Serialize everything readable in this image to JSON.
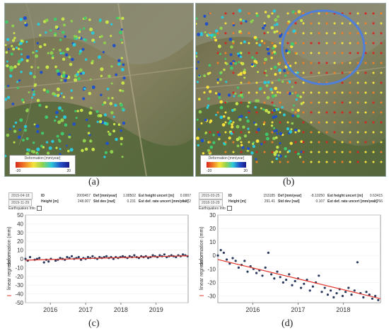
{
  "panels": {
    "a": {
      "caption": "(a)",
      "legend": {
        "title": "Deformation [mm/year]",
        "min": "-20",
        "max": "20"
      },
      "info": {
        "date_from": "2015-04-18",
        "date_to": "2019-11-29",
        "id_label": "ID",
        "id_value": "2009457",
        "height_label": "Height [m]",
        "height_value": "248.007",
        "def_label": "Def [mm/year]",
        "def_value": "1.08502",
        "stddev_label": "Std dev [rad]",
        "stddev_value": "0.231",
        "ehu_label": "Est height uncert [m]",
        "ehu_value": "0.0007",
        "edru_label": "Est def. rate uncert [mm/year]",
        "edru_value": "0.072",
        "eq_label": "Earthquakes Info"
      }
    },
    "b": {
      "caption": "(b)",
      "legend": {
        "title": "Deformation [mm/year]",
        "min": "-20",
        "max": "20"
      },
      "info": {
        "date_from": "2015-03-25",
        "date_to": "2018-10-29",
        "id_label": "ID",
        "id_value": "153185",
        "height_label": "Height [m]",
        "height_value": "291.41",
        "def_label": "Def [mm/year]",
        "def_value": "-8.10250",
        "stddev_label": "Std dev [rad]",
        "stddev_value": "0.107",
        "ehu_label": "Est height uncert [m]",
        "ehu_value": "0.63415",
        "edru_label": "Est def. rate uncert [mm/year]",
        "edru_value": "0.766",
        "eq_label": "Earthquakes Info"
      }
    },
    "c": {
      "caption": "(c)"
    },
    "d": {
      "caption": "(d)"
    }
  },
  "colors": {
    "scatter": "#2a3a5c",
    "regression": "#e0332a",
    "ellipse": "#4f7fd8",
    "terrain": "#7c7a5a",
    "vegetation": "#4f6a3a"
  },
  "chart_data": [
    {
      "type": "scatter",
      "panel": "c",
      "ylabel": "deformation (mm)",
      "legend": "linear regression",
      "ylim": [
        -50,
        50
      ],
      "yticks": [
        50,
        40,
        30,
        20,
        10,
        0,
        -10,
        -20,
        -30,
        -40,
        -50
      ],
      "xlim": [
        "2015-04-18",
        "2019-11-29"
      ],
      "xticks": [
        "2016",
        "2017",
        "2018",
        "2019"
      ],
      "trend": {
        "start": -1.5,
        "end": 3.5
      },
      "series": [
        {
          "x": [
            "2015-04-18",
            "2015-05-12",
            "2015-06-05",
            "2015-07-23",
            "2015-08-16",
            "2015-09-09",
            "2015-10-27",
            "2015-11-20",
            "2015-12-14",
            "2016-01-07",
            "2016-02-24",
            "2016-03-19",
            "2016-04-12",
            "2016-05-06",
            "2016-05-30",
            "2016-06-23",
            "2016-07-17",
            "2016-08-10",
            "2016-09-03",
            "2016-09-27",
            "2016-10-21",
            "2016-11-14",
            "2016-12-08",
            "2017-01-01",
            "2017-01-25",
            "2017-02-18",
            "2017-03-14",
            "2017-04-07",
            "2017-05-01",
            "2017-05-25",
            "2017-06-18",
            "2017-07-12",
            "2017-08-05",
            "2017-08-29",
            "2017-09-22",
            "2017-10-16",
            "2017-11-09",
            "2017-12-03",
            "2017-12-27",
            "2018-01-20",
            "2018-02-13",
            "2018-03-09",
            "2018-04-02",
            "2018-04-26",
            "2018-05-20",
            "2018-06-13",
            "2018-07-07",
            "2018-07-31",
            "2018-08-24",
            "2018-09-17",
            "2018-10-11",
            "2018-11-04",
            "2018-11-28",
            "2018-12-22",
            "2019-01-15",
            "2019-02-08",
            "2019-03-04",
            "2019-03-28",
            "2019-04-21",
            "2019-05-15",
            "2019-06-08",
            "2019-07-02",
            "2019-07-26",
            "2019-08-19",
            "2019-09-12",
            "2019-10-06",
            "2019-10-30",
            "2019-11-23"
          ],
          "y": [
            0,
            -2,
            2,
            -1,
            0,
            1,
            -4,
            -1,
            -3,
            0,
            -2,
            -1,
            1,
            0,
            -1,
            2,
            1,
            3,
            0,
            1,
            2,
            -1,
            1,
            0,
            2,
            1,
            3,
            1,
            0,
            2,
            1,
            2,
            3,
            1,
            2,
            0,
            2,
            1,
            2,
            3,
            2,
            1,
            3,
            2,
            4,
            2,
            1,
            3,
            2,
            3,
            1,
            2,
            4,
            3,
            2,
            4,
            3,
            5,
            2,
            3,
            4,
            3,
            2,
            4,
            3,
            5,
            4,
            3
          ]
        }
      ]
    },
    {
      "type": "scatter",
      "panel": "d",
      "ylabel": "deformation (mm)",
      "legend": "linear regression",
      "ylim": [
        -35,
        30
      ],
      "yticks": [
        30,
        20,
        10,
        0,
        -10,
        -20,
        -30
      ],
      "xlim": [
        "2015-03-25",
        "2018-10-29"
      ],
      "xticks": [
        "2016",
        "2017",
        "2018"
      ],
      "trend": {
        "start": -3,
        "end": -32
      },
      "series": [
        {
          "x": [
            "2015-03-25",
            "2015-04-18",
            "2015-05-12",
            "2015-06-05",
            "2015-06-29",
            "2015-07-23",
            "2015-08-16",
            "2015-09-09",
            "2015-10-03",
            "2015-10-27",
            "2015-11-20",
            "2015-12-14",
            "2016-01-07",
            "2016-01-31",
            "2016-02-24",
            "2016-03-19",
            "2016-04-12",
            "2016-05-06",
            "2016-05-30",
            "2016-06-23",
            "2016-07-17",
            "2016-08-10",
            "2016-09-03",
            "2016-09-27",
            "2016-10-21",
            "2016-11-14",
            "2016-12-08",
            "2017-01-01",
            "2017-01-25",
            "2017-02-18",
            "2017-03-14",
            "2017-04-07",
            "2017-05-01",
            "2017-05-25",
            "2017-06-18",
            "2017-07-12",
            "2017-08-05",
            "2017-08-29",
            "2017-09-22",
            "2017-10-16",
            "2017-11-09",
            "2017-12-03",
            "2017-12-27",
            "2018-01-20",
            "2018-02-13",
            "2018-03-09",
            "2018-04-02",
            "2018-04-26",
            "2018-05-20",
            "2018-06-13",
            "2018-07-07",
            "2018-07-31",
            "2018-08-24",
            "2018-09-17",
            "2018-10-11"
          ],
          "y": [
            0,
            4,
            2,
            -3,
            -6,
            -2,
            -4,
            -9,
            -7,
            -4,
            -12,
            -8,
            -10,
            -13,
            -11,
            -15,
            -9,
            2,
            -14,
            -17,
            -12,
            -16,
            -20,
            -18,
            -14,
            -22,
            -19,
            -17,
            -24,
            -21,
            -18,
            -26,
            -23,
            -20,
            -15,
            -27,
            -24,
            -29,
            -26,
            -31,
            -28,
            -25,
            -30,
            -27,
            -24,
            -29,
            -26,
            -5,
            -28,
            -31,
            -27,
            -29,
            -32,
            -30,
            -33
          ]
        }
      ]
    }
  ]
}
